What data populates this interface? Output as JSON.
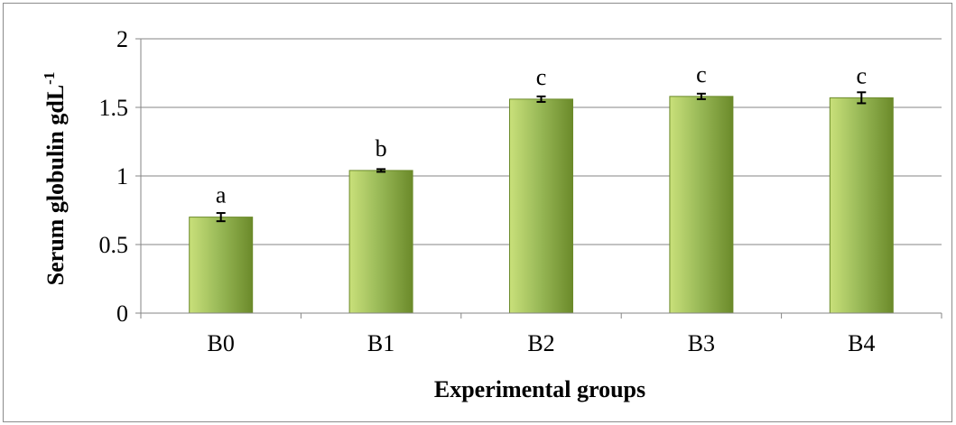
{
  "chart_data": {
    "type": "bar",
    "xlabel": "Experimental groups",
    "ylabel": "Serum globulin gdL",
    "ylabel_superscript": "-1",
    "categories": [
      "B0",
      "B1",
      "B2",
      "B3",
      "B4"
    ],
    "values": [
      0.7,
      1.04,
      1.56,
      1.58,
      1.57
    ],
    "error": [
      0.03,
      0.01,
      0.02,
      0.02,
      0.04
    ],
    "significance_labels": [
      "a",
      "b",
      "c",
      "c",
      "c"
    ],
    "ylim": [
      0,
      2
    ],
    "yticks": [
      0,
      0.5,
      1,
      1.5,
      2
    ],
    "ytick_labels": [
      "0",
      "0.5",
      "1",
      "1.5",
      "2"
    ],
    "grid": true,
    "legend": "none",
    "colors": {
      "bar_light": "#c9e07a",
      "bar_mid": "#9bbb59",
      "bar_dark": "#6b8a2a",
      "grid": "#868686",
      "error_bar": "#000000"
    }
  }
}
